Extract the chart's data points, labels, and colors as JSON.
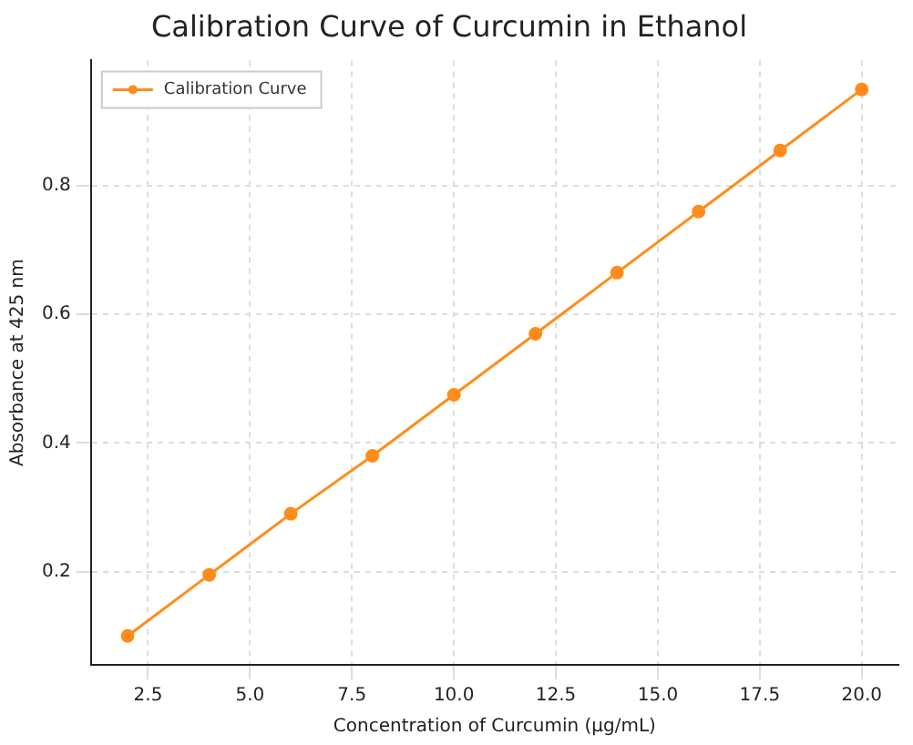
{
  "chart_data": {
    "type": "line",
    "title": "Calibration Curve of Curcumin in Ethanol",
    "xlabel": "Concentration of Curcumin (µg/mL)",
    "ylabel": "Absorbance at 425 nm",
    "x": [
      2,
      4,
      6,
      8,
      10,
      12,
      14,
      16,
      18,
      20
    ],
    "series": [
      {
        "name": "Calibration Curve",
        "color": "#ff8c1a",
        "values": [
          0.1,
          0.195,
          0.29,
          0.38,
          0.475,
          0.57,
          0.665,
          0.76,
          0.855,
          0.95
        ]
      }
    ],
    "xlim": [
      1.1,
      20.9
    ],
    "ylim": [
      0.055,
      0.995
    ],
    "xticks": [
      2.5,
      {
        "value": 5,
        "label": "5.0"
      },
      7.5,
      {
        "value": 10,
        "label": "10.0"
      },
      12.5,
      {
        "value": 15,
        "label": "15.0"
      },
      17.5,
      {
        "value": 20,
        "label": "20.0"
      }
    ],
    "yticks": [
      0.2,
      0.4,
      0.6,
      0.8
    ],
    "grid": true,
    "legend": "top left",
    "marker": "circle",
    "line_style": "solid"
  }
}
